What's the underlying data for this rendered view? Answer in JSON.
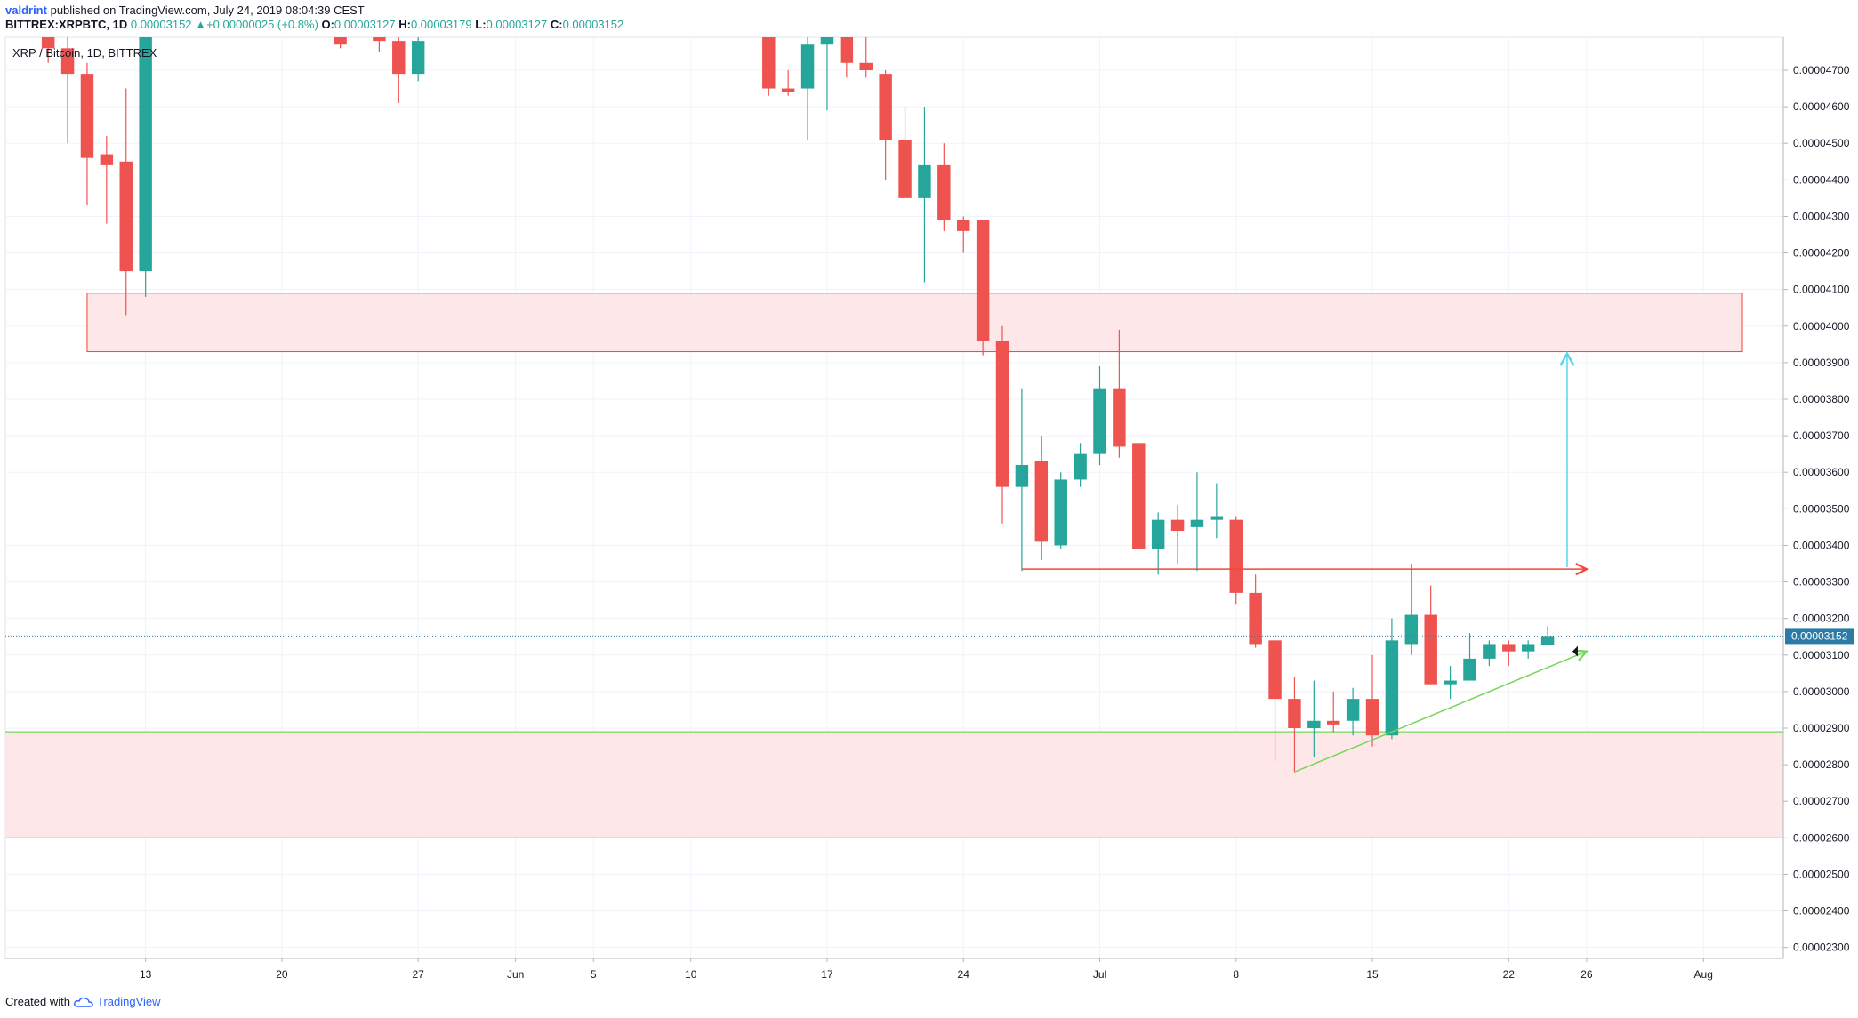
{
  "header": {
    "author": "valdrint",
    "published_text": "published on TradingView.com, July 24, 2019 08:04:39 CEST",
    "symbol_line": "BITTREX:XRPBTC, 1D",
    "last": "0.00003152",
    "change": "+0.00000025 (+0.8%)",
    "open_label": "O:",
    "open": "0.00003127",
    "high_label": "H:",
    "high": "0.00003179",
    "low_label": "L:",
    "low": "0.00003127",
    "close_label": "C:",
    "close": "0.00003152"
  },
  "footer": {
    "created_with": "Created with",
    "brand": "TradingView"
  },
  "colors": {
    "up": "#26a69a",
    "down": "#ef5350",
    "zone_fill": "#fde7e9",
    "zone_border_red": "#f44336",
    "zone_border_green": "#76d65a",
    "resistance_line": "#f44336",
    "support_line": "#76d65a",
    "target_arrow": "#56d4f0",
    "last_price_line": "#2b7ba6"
  },
  "chart_data": {
    "type": "candlestick",
    "legend_text": "XRP / Bitcoin, 1D, BITTREX",
    "y_ticks": [
      "0.00002300",
      "0.00002400",
      "0.00002500",
      "0.00002600",
      "0.00002700",
      "0.00002800",
      "0.00002900",
      "0.00003000",
      "0.00003100",
      "0.00003200",
      "0.00003300",
      "0.00003400",
      "0.00003500",
      "0.00003600",
      "0.00003700",
      "0.00003800",
      "0.00003900",
      "0.00004000",
      "0.00004100",
      "0.00004200",
      "0.00004300",
      "0.00004400",
      "0.00004500",
      "0.00004600",
      "0.00004700"
    ],
    "y_tick_values": [
      2300,
      2400,
      2500,
      2600,
      2700,
      2800,
      2900,
      3000,
      3100,
      3200,
      3300,
      3400,
      3500,
      3600,
      3700,
      3800,
      3900,
      4000,
      4100,
      4200,
      4300,
      4400,
      4500,
      4600,
      4700
    ],
    "y_units_note": "values in 1e-8 BTC",
    "ylim": [
      2270,
      4790
    ],
    "x_ticks": [
      {
        "label": "13",
        "day": 13
      },
      {
        "label": "20",
        "day": 20
      },
      {
        "label": "27",
        "day": 27
      },
      {
        "label": "Jun",
        "day": 32
      },
      {
        "label": "5",
        "day": 36
      },
      {
        "label": "10",
        "day": 41
      },
      {
        "label": "17",
        "day": 48
      },
      {
        "label": "24",
        "day": 55
      },
      {
        "label": "Jul",
        "day": 62
      },
      {
        "label": "8",
        "day": 69
      },
      {
        "label": "15",
        "day": 76
      },
      {
        "label": "22",
        "day": 83
      },
      {
        "label": "26",
        "day": 87
      },
      {
        "label": "Aug",
        "day": 93
      }
    ],
    "xlim": [
      5.8,
      97.1
    ],
    "last_price": 3152,
    "last_price_label": "0.00003152",
    "candles": [
      {
        "day": 8,
        "o": 4800,
        "h": 4820,
        "c": 4760,
        "l": 4720
      },
      {
        "day": 9,
        "o": 4760,
        "h": 4800,
        "c": 4690,
        "l": 4500
      },
      {
        "day": 10,
        "o": 4690,
        "h": 4720,
        "c": 4460,
        "l": 4330
      },
      {
        "day": 11,
        "o": 4470,
        "h": 4520,
        "c": 4440,
        "l": 4280
      },
      {
        "day": 12,
        "o": 4450,
        "h": 4650,
        "c": 4150,
        "l": 4030
      },
      {
        "day": 13,
        "o": 4150,
        "h": 4820,
        "c": 4800,
        "l": 4080
      },
      {
        "day": 23,
        "o": 4800,
        "h": 4830,
        "c": 4770,
        "l": 4760
      },
      {
        "day": 25,
        "o": 4800,
        "h": 4820,
        "c": 4780,
        "l": 4750
      },
      {
        "day": 26,
        "o": 4780,
        "h": 4830,
        "c": 4690,
        "l": 4610
      },
      {
        "day": 27,
        "o": 4690,
        "h": 4800,
        "c": 4780,
        "l": 4670
      },
      {
        "day": 45,
        "o": 4800,
        "h": 4820,
        "c": 4650,
        "l": 4630
      },
      {
        "day": 46,
        "o": 4650,
        "h": 4700,
        "c": 4640,
        "l": 4630
      },
      {
        "day": 47,
        "o": 4650,
        "h": 4800,
        "c": 4770,
        "l": 4510
      },
      {
        "day": 48,
        "o": 4770,
        "h": 4820,
        "c": 4790,
        "l": 4590
      },
      {
        "day": 49,
        "o": 4800,
        "h": 4830,
        "c": 4720,
        "l": 4680
      },
      {
        "day": 50,
        "o": 4720,
        "h": 4790,
        "c": 4700,
        "l": 4680
      },
      {
        "day": 51,
        "o": 4690,
        "h": 4700,
        "c": 4510,
        "l": 4400
      },
      {
        "day": 52,
        "o": 4510,
        "h": 4600,
        "c": 4350,
        "l": 4350
      },
      {
        "day": 53,
        "o": 4350,
        "h": 4600,
        "c": 4440,
        "l": 4120
      },
      {
        "day": 54,
        "o": 4440,
        "h": 4500,
        "c": 4290,
        "l": 4260
      },
      {
        "day": 55,
        "o": 4290,
        "h": 4300,
        "c": 4260,
        "l": 4200
      },
      {
        "day": 56,
        "o": 4290,
        "h": 4290,
        "c": 3960,
        "l": 3920
      },
      {
        "day": 57,
        "o": 3960,
        "h": 4000,
        "c": 3560,
        "l": 3460
      },
      {
        "day": 58,
        "o": 3560,
        "h": 3830,
        "c": 3620,
        "l": 3330
      },
      {
        "day": 59,
        "o": 3630,
        "h": 3700,
        "c": 3410,
        "l": 3360
      },
      {
        "day": 60,
        "o": 3400,
        "h": 3600,
        "c": 3580,
        "l": 3390
      },
      {
        "day": 61,
        "o": 3580,
        "h": 3680,
        "c": 3650,
        "l": 3560
      },
      {
        "day": 62,
        "o": 3650,
        "h": 3890,
        "c": 3830,
        "l": 3620
      },
      {
        "day": 63,
        "o": 3830,
        "h": 3990,
        "c": 3670,
        "l": 3640
      },
      {
        "day": 64,
        "o": 3680,
        "h": 3680,
        "c": 3390,
        "l": 3390
      },
      {
        "day": 65,
        "o": 3390,
        "h": 3490,
        "c": 3470,
        "l": 3320
      },
      {
        "day": 66,
        "o": 3470,
        "h": 3510,
        "c": 3440,
        "l": 3350
      },
      {
        "day": 67,
        "o": 3450,
        "h": 3600,
        "c": 3470,
        "l": 3330
      },
      {
        "day": 68,
        "o": 3470,
        "h": 3570,
        "c": 3480,
        "l": 3420
      },
      {
        "day": 69,
        "o": 3470,
        "h": 3480,
        "c": 3270,
        "l": 3240
      },
      {
        "day": 70,
        "o": 3270,
        "h": 3320,
        "c": 3130,
        "l": 3120
      },
      {
        "day": 71,
        "o": 3140,
        "h": 3140,
        "c": 2980,
        "l": 2810
      },
      {
        "day": 72,
        "o": 2980,
        "h": 3040,
        "c": 2900,
        "l": 2780
      },
      {
        "day": 73,
        "o": 2900,
        "h": 3030,
        "c": 2920,
        "l": 2820
      },
      {
        "day": 74,
        "o": 2920,
        "h": 3000,
        "c": 2910,
        "l": 2890
      },
      {
        "day": 75,
        "o": 2920,
        "h": 3010,
        "c": 2980,
        "l": 2880
      },
      {
        "day": 76,
        "o": 2980,
        "h": 3100,
        "c": 2880,
        "l": 2850
      },
      {
        "day": 77,
        "o": 2880,
        "h": 3200,
        "c": 3140,
        "l": 2870
      },
      {
        "day": 78,
        "o": 3130,
        "h": 3350,
        "c": 3210,
        "l": 3100
      },
      {
        "day": 79,
        "o": 3210,
        "h": 3290,
        "c": 3020,
        "l": 3020
      },
      {
        "day": 80,
        "o": 3020,
        "h": 3070,
        "c": 3030,
        "l": 2980
      },
      {
        "day": 81,
        "o": 3030,
        "h": 3160,
        "c": 3090,
        "l": 3030
      },
      {
        "day": 82,
        "o": 3090,
        "h": 3140,
        "c": 3130,
        "l": 3070
      },
      {
        "day": 83,
        "o": 3130,
        "h": 3140,
        "c": 3110,
        "l": 3070
      },
      {
        "day": 84,
        "o": 3110,
        "h": 3140,
        "c": 3130,
        "l": 3090
      },
      {
        "day": 85,
        "o": 3127,
        "h": 3179,
        "c": 3152,
        "l": 3127
      }
    ],
    "zones": [
      {
        "name": "resistance-zone",
        "day_from": 10,
        "day_to": 95,
        "top": 4090,
        "bottom": 3930,
        "border": "red"
      },
      {
        "name": "support-zone",
        "day_from": 5.8,
        "day_to": 97.1,
        "top": 2890,
        "bottom": 2600,
        "border": "green"
      }
    ],
    "lines": [
      {
        "name": "resistance-line",
        "day1": 58,
        "price1": 3335,
        "day2": 87,
        "price2": 3335,
        "color": "red"
      },
      {
        "name": "ascending-support-line",
        "day1": 72,
        "price1": 2780,
        "day2": 87,
        "price2": 3110,
        "color": "green"
      },
      {
        "name": "target-arrow",
        "day1": 86,
        "price1": 3340,
        "day2": 86,
        "price2": 3925,
        "color": "cyan"
      }
    ]
  }
}
